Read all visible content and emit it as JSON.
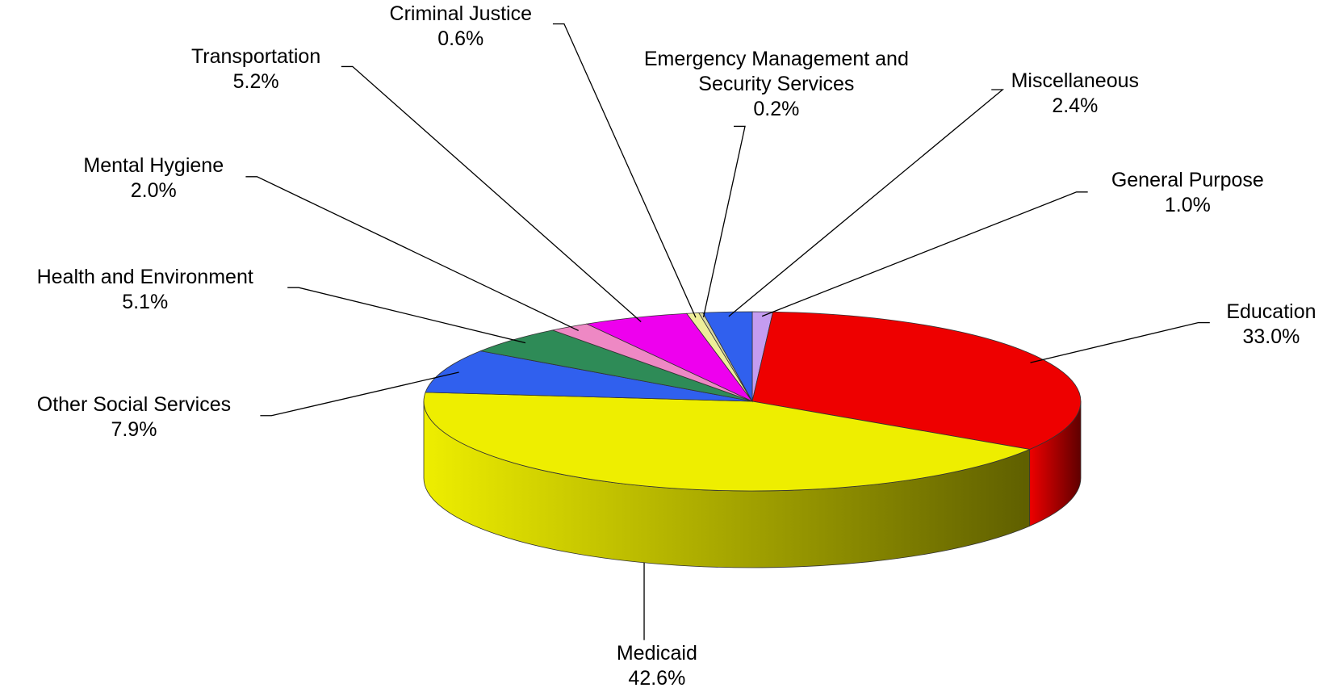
{
  "chart_data": {
    "type": "pie3d",
    "categories": [
      "General Purpose",
      "Education",
      "Medicaid",
      "Other Social Services",
      "Health and Environment",
      "Mental Hygiene",
      "Transportation",
      "Criminal Justice",
      "Emergency Management and Security Services",
      "Miscellaneous"
    ],
    "values": [
      1.0,
      33.0,
      42.6,
      7.9,
      5.1,
      2.0,
      5.2,
      0.6,
      0.2,
      2.4
    ],
    "value_labels": [
      "1.0%",
      "33.0%",
      "42.6%",
      "7.9%",
      "5.1%",
      "2.0%",
      "5.2%",
      "0.6%",
      "0.2%",
      "2.4%"
    ],
    "colors": [
      "#c49cf0",
      "#ee0000",
      "#eeee00",
      "#3060ee",
      "#2e8b57",
      "#ee88c4",
      "#ee00ee",
      "#eeee99",
      "#d8d8a0",
      "#3060ee"
    ]
  }
}
